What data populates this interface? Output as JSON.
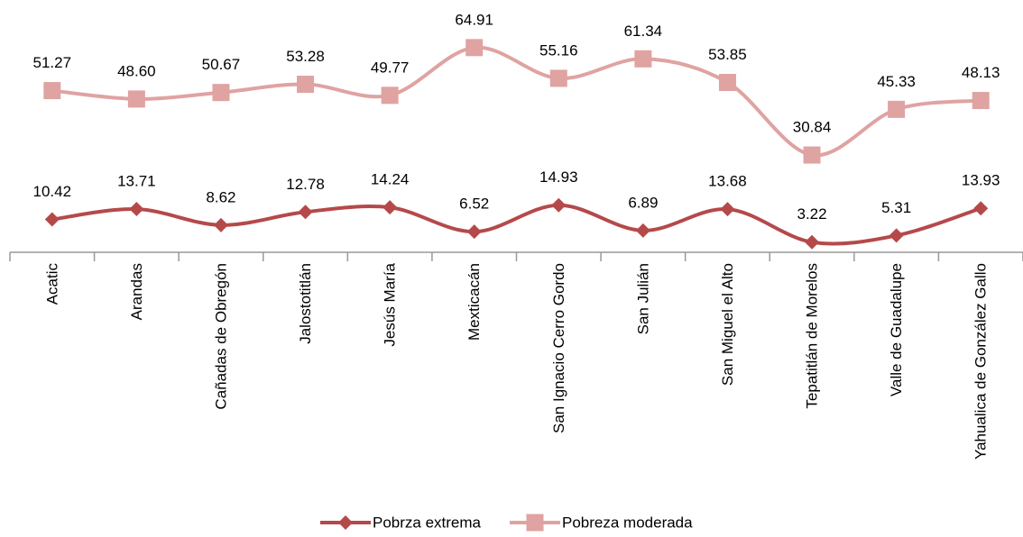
{
  "chart_data": {
    "type": "line",
    "categories": [
      "Acatic",
      "Arandas",
      "Cañadas de Obregón",
      "Jalostotitlán",
      "Jesús María",
      "Mexticacán",
      "San Ignacio Cerro Gordo",
      "San Julián",
      "San Miguel el Alto",
      "Tepatitlán de Morelos",
      "Valle de Guadalupe",
      "Yahualica de González Gallo"
    ],
    "series": [
      {
        "name": "Pobrza extrema",
        "color": "#b5494a",
        "marker": "diamond",
        "values": [
          10.42,
          13.71,
          8.62,
          12.78,
          14.24,
          6.52,
          14.93,
          6.89,
          13.68,
          3.22,
          5.31,
          13.93
        ],
        "value_labels": [
          "10.42",
          "13.71",
          "8.62",
          "12.78",
          "14.24",
          "6.52",
          "14.93",
          "6.89",
          "13.68",
          "3.22",
          "5.31",
          "13.93"
        ]
      },
      {
        "name": "Pobreza moderada",
        "color": "#dfa3a2",
        "marker": "square",
        "values": [
          51.27,
          48.6,
          50.67,
          53.28,
          49.77,
          64.91,
          55.16,
          61.34,
          53.85,
          30.84,
          45.33,
          48.13
        ],
        "value_labels": [
          "51.27",
          "48.60",
          "50.67",
          "53.28",
          "49.77",
          "64.91",
          "55.16",
          "61.34",
          "53.85",
          "30.84",
          "45.33",
          "48.13"
        ]
      }
    ],
    "ylim": [
      0,
      70
    ],
    "smooth": true,
    "legend": "bottom"
  }
}
